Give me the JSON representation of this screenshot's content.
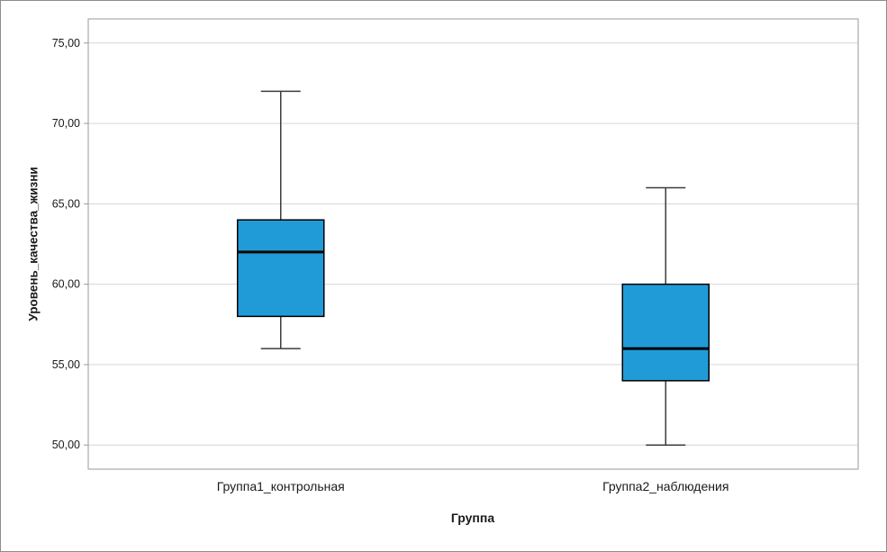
{
  "figure": {
    "background": "#ffffff",
    "border_color": "#8c8c8c"
  },
  "chart_data": {
    "type": "boxplot",
    "title": "",
    "xlabel": "Группа",
    "ylabel": "Уровень_качества_жизни",
    "categories": [
      "Группа1_контрольная",
      "Группа2_наблюдения"
    ],
    "series": [
      {
        "name": "Группа1_контрольная",
        "whisker_low": 56,
        "q1": 58,
        "median": 62,
        "q3": 64,
        "whisker_high": 72
      },
      {
        "name": "Группа2_наблюдения",
        "whisker_low": 50,
        "q1": 54,
        "median": 56,
        "q3": 60,
        "whisker_high": 66
      }
    ],
    "ylim": [
      48.5,
      76.5
    ],
    "yticks": [
      50,
      55,
      60,
      65,
      70,
      75
    ],
    "ytick_labels": [
      "50,00",
      "55,00",
      "60,00",
      "65,00",
      "70,00",
      "75,00"
    ],
    "grid": true,
    "legend": false,
    "colors": {
      "box_fill": "#219bd8",
      "box_stroke": "#000000",
      "median": "#000000",
      "whisker": "#3c3c3c",
      "gridline": "#d6d6d6",
      "axis": "#9a9a9a",
      "text": "#1a1a1a"
    }
  }
}
